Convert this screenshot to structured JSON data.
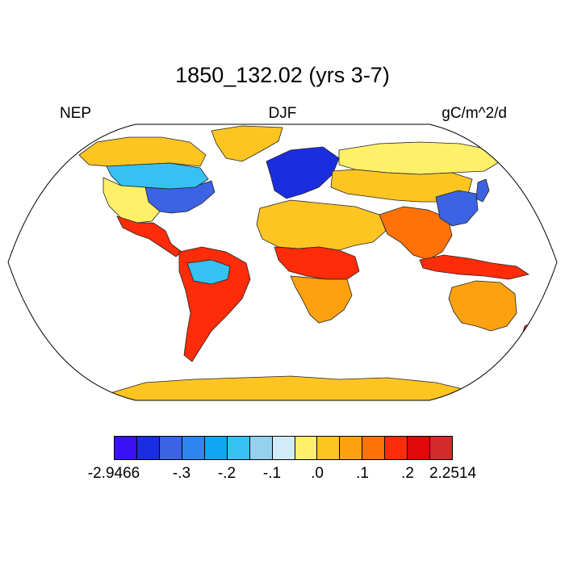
{
  "title": "1850_132.02 (yrs 3-7)",
  "left_label": "NEP",
  "center_label": "DJF",
  "right_label": "gC/m^2/d",
  "projection": "robinson",
  "colorbar": {
    "colors": [
      "#3a10f5",
      "#1a2ee0",
      "#3b63e3",
      "#2e86f0",
      "#10a6f3",
      "#36c1f3",
      "#96d0ef",
      "#d1ebfa",
      "#fff06a",
      "#fec522",
      "#fda10e",
      "#ff7208",
      "#fe2c08",
      "#e00808",
      "#d42a2a"
    ],
    "labels": [
      "-2.9466",
      "-.3",
      "-.2",
      "-.1",
      ".0",
      ".1",
      ".2",
      "2.2514"
    ]
  },
  "regions": [
    {
      "name": "greenland-ice",
      "color": "#fec522"
    },
    {
      "name": "antarctica",
      "color": "#fec522"
    },
    {
      "name": "north-america-north",
      "color": "#fec522"
    },
    {
      "name": "eastern-north-america",
      "color": "#3b63e3"
    },
    {
      "name": "canada-mid",
      "color": "#36c1f3"
    },
    {
      "name": "western-us",
      "color": "#fff06a"
    },
    {
      "name": "mexico-central-america",
      "color": "#fe2c08"
    },
    {
      "name": "south-america",
      "color": "#fe2c08"
    },
    {
      "name": "amazon",
      "color": "#36c1f3"
    },
    {
      "name": "europe",
      "color": "#1a2ee0"
    },
    {
      "name": "siberia",
      "color": "#fff06a"
    },
    {
      "name": "north-asia",
      "color": "#fec522"
    },
    {
      "name": "sahara-arabia",
      "color": "#fec522"
    },
    {
      "name": "central-africa",
      "color": "#fe2c08"
    },
    {
      "name": "southern-africa",
      "color": "#fda10e"
    },
    {
      "name": "india-se-asia",
      "color": "#ff7208"
    },
    {
      "name": "east-china",
      "color": "#3b63e3"
    },
    {
      "name": "indonesia",
      "color": "#fe2c08"
    },
    {
      "name": "australia",
      "color": "#fda10e"
    },
    {
      "name": "new-zealand",
      "color": "#fe2c08"
    },
    {
      "name": "japan",
      "color": "#3b63e3"
    }
  ]
}
